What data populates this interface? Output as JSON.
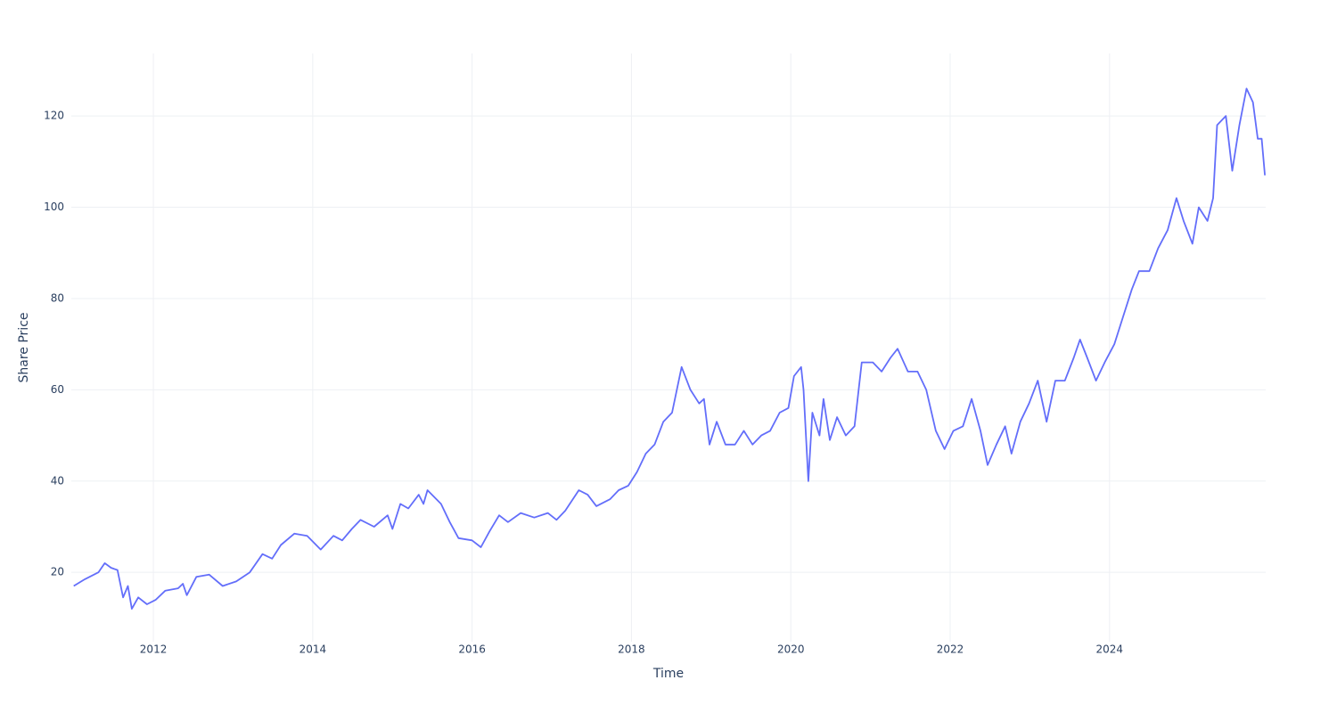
{
  "chart_data": {
    "type": "line",
    "x_label": "Time",
    "y_label": "Share Price",
    "x": [
      2011.0,
      2011.14,
      2011.31,
      2011.39,
      2011.47,
      2011.55,
      2011.62,
      2011.68,
      2011.73,
      2011.81,
      2011.92,
      2012.03,
      2012.15,
      2012.31,
      2012.37,
      2012.42,
      2012.54,
      2012.7,
      2012.87,
      2013.04,
      2013.21,
      2013.37,
      2013.49,
      2013.6,
      2013.77,
      2013.93,
      2014.1,
      2014.26,
      2014.37,
      2014.49,
      2014.6,
      2014.77,
      2014.94,
      2015.0,
      2015.1,
      2015.2,
      2015.33,
      2015.39,
      2015.44,
      2015.61,
      2015.72,
      2015.83,
      2016.0,
      2016.11,
      2016.22,
      2016.34,
      2016.45,
      2016.61,
      2016.78,
      2016.95,
      2017.06,
      2017.17,
      2017.34,
      2017.45,
      2017.56,
      2017.73,
      2017.84,
      2017.96,
      2018.07,
      2018.18,
      2018.29,
      2018.4,
      2018.51,
      2018.63,
      2018.74,
      2018.85,
      2018.91,
      2018.98,
      2019.07,
      2019.18,
      2019.3,
      2019.41,
      2019.52,
      2019.63,
      2019.74,
      2019.86,
      2019.97,
      2020.04,
      2020.13,
      2020.16,
      2020.22,
      2020.27,
      2020.36,
      2020.41,
      2020.49,
      2020.58,
      2020.69,
      2020.8,
      2020.89,
      2021.03,
      2021.14,
      2021.25,
      2021.34,
      2021.47,
      2021.59,
      2021.7,
      2021.82,
      2021.93,
      2022.04,
      2022.16,
      2022.27,
      2022.38,
      2022.47,
      2022.58,
      2022.69,
      2022.77,
      2022.88,
      2022.99,
      2023.1,
      2023.21,
      2023.32,
      2023.44,
      2023.55,
      2023.63,
      2023.72,
      2023.83,
      2023.94,
      2024.06,
      2024.17,
      2024.28,
      2024.37,
      2024.5,
      2024.61,
      2024.73,
      2024.84,
      2024.93,
      2025.04,
      2025.12,
      2025.23,
      2025.3,
      2025.35,
      2025.46,
      2025.54,
      2025.63,
      2025.72,
      2025.8,
      2025.86,
      2025.91,
      2025.95
    ],
    "y": [
      17,
      18.5,
      20,
      22,
      21,
      20.5,
      14.5,
      17,
      12,
      14.5,
      13,
      14,
      16,
      16.5,
      17.5,
      15,
      19,
      19.5,
      17,
      18,
      20,
      24,
      23,
      26,
      28.5,
      28,
      25,
      28,
      27,
      29.5,
      31.5,
      30,
      32.5,
      29.5,
      35,
      34,
      37,
      35,
      38,
      35,
      31,
      27.5,
      27,
      25.5,
      29,
      32.5,
      31,
      33,
      32,
      33,
      31.5,
      33.5,
      38,
      37,
      34.5,
      36,
      38,
      39,
      42,
      46,
      48,
      53,
      55,
      65,
      60,
      57,
      58,
      48,
      53,
      48,
      48,
      51,
      48,
      50,
      51,
      55,
      56,
      63,
      65,
      60,
      40,
      55,
      50,
      58,
      49,
      54,
      50,
      52,
      66,
      66,
      64,
      67,
      69,
      64,
      64,
      60,
      51,
      47,
      51,
      52,
      58,
      51,
      43.5,
      48,
      52,
      46,
      53,
      57,
      62,
      53,
      62,
      62,
      67,
      71,
      67,
      62,
      66,
      70,
      76,
      82,
      86,
      86,
      91,
      95,
      102,
      97,
      92,
      100,
      97,
      102,
      118,
      120,
      108,
      118,
      126,
      123,
      115,
      115,
      107
    ],
    "color": "#636efa",
    "xlim": [
      2010.97,
      2025.96
    ],
    "xticks": [
      2012,
      2014,
      2016,
      2018,
      2020,
      2022,
      2024
    ],
    "ylim": [
      4.8,
      133.7
    ],
    "yticks": [
      20,
      40,
      60,
      80,
      100,
      120
    ],
    "grid": true
  }
}
